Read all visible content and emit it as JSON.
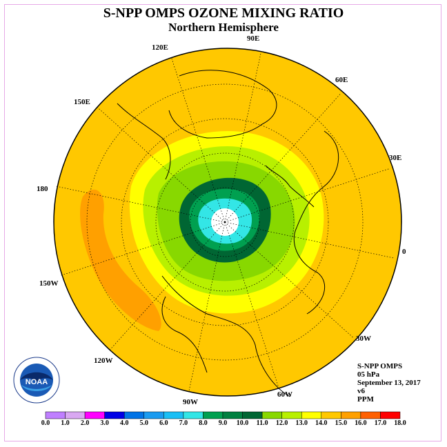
{
  "title": "S-NPP OMPS OZONE MIXING RATIO",
  "subtitle": "Northern Hemisphere",
  "longitude_labels": [
    "90E",
    "60E",
    "30E",
    "0",
    "30W",
    "60W",
    "90W",
    "120W",
    "150W",
    "180",
    "150E",
    "120E"
  ],
  "info": {
    "instrument": "S-NPP OMPS",
    "pressure": "05 hPa",
    "date": "September 13, 2017",
    "version": "v6",
    "units": "PPM"
  },
  "logo": {
    "text": "NOAA",
    "icon": "noaa-logo"
  },
  "colorbar": {
    "ticks": [
      "0.0",
      "1.0",
      "2.0",
      "3.0",
      "4.0",
      "5.0",
      "6.0",
      "7.0",
      "8.0",
      "9.0",
      "10.0",
      "11.0",
      "12.0",
      "13.0",
      "14.0",
      "15.0",
      "16.0",
      "17.0",
      "18.0"
    ],
    "colors": [
      "#bf7fff",
      "#d9a8f2",
      "#ff00ff",
      "#0000e6",
      "#0073e6",
      "#1a9bf0",
      "#1abff5",
      "#33e6e6",
      "#00a050",
      "#008040",
      "#006633",
      "#88d800",
      "#b8f000",
      "#ffff00",
      "#ffc800",
      "#ffa000",
      "#ff6000",
      "#ff0000",
      "#a05030"
    ]
  },
  "colors": {
    "background_field": "#ffc800",
    "frame": "#e6a8e6"
  }
}
